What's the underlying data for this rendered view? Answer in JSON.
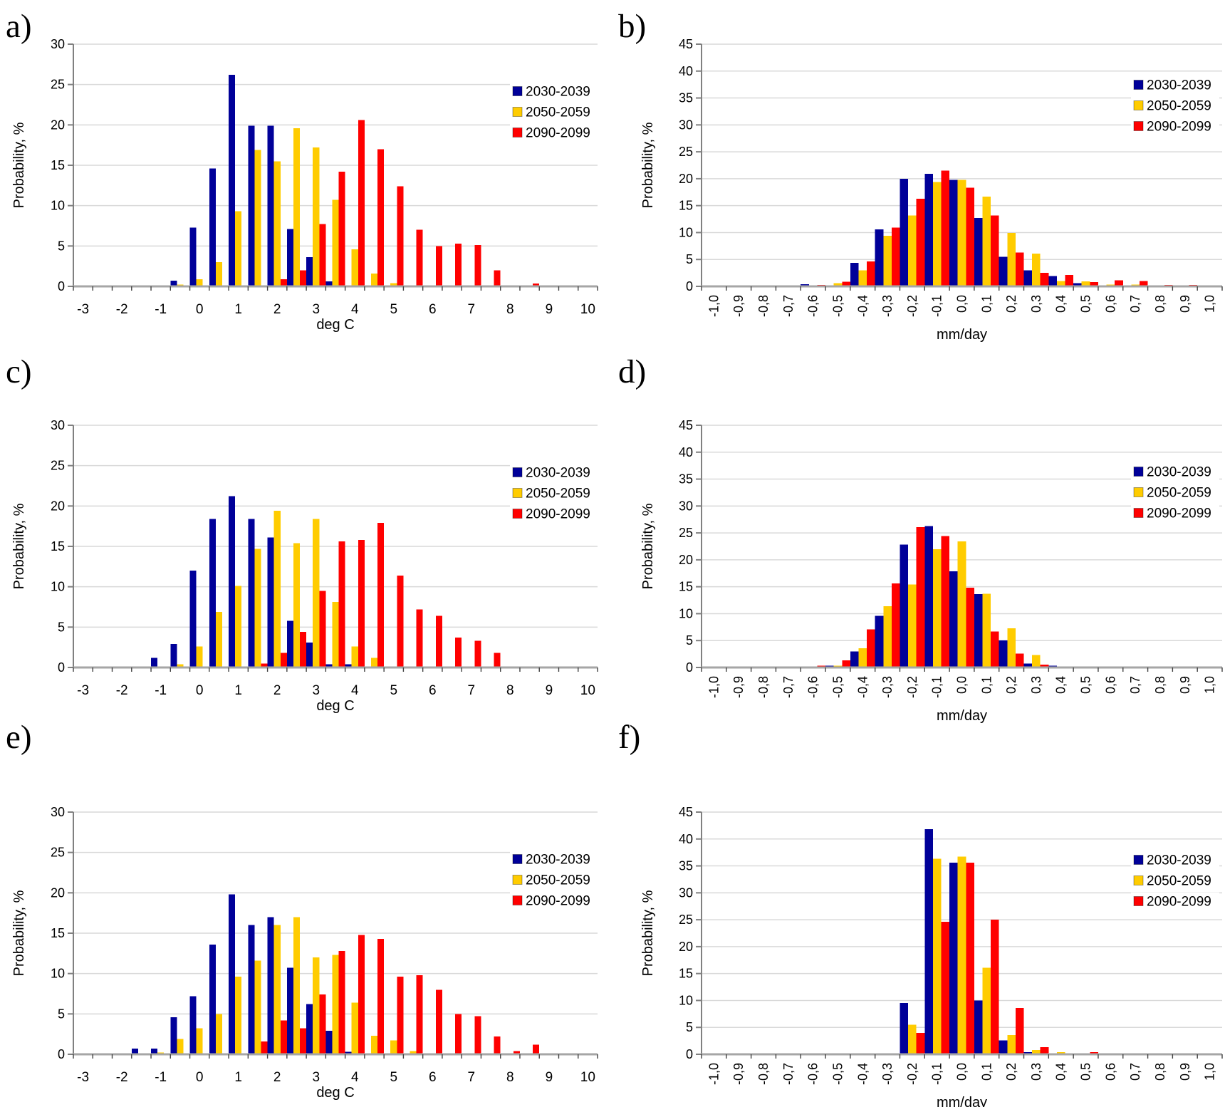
{
  "figure": {
    "background": "#ffffff",
    "legend_labels": [
      "2030-2039",
      "2050-2059",
      "2090-2099"
    ],
    "ylabel": "Probability, %"
  },
  "colors": {
    "navy": "#000099",
    "yellow": "#FFCC00",
    "red": "#FF0000",
    "grid": "#D9D9D9",
    "axis_line": "#808080",
    "baseline": "#A6A6A6",
    "tick": "#404040",
    "text": "#000000"
  },
  "chart_data": [
    {
      "id": "a",
      "letter": "a)",
      "type": "bar",
      "ylabel": "Probability, %",
      "xlabel": "deg C",
      "ylim": [
        0,
        30
      ],
      "ytick_labels": [
        "0",
        "5",
        "10",
        "15",
        "20",
        "25",
        "30"
      ],
      "ytick_values": [
        0,
        5,
        10,
        15,
        20,
        25,
        30
      ],
      "axis_range": [
        -3.25,
        10.25
      ],
      "bin_step": 0.5,
      "bins": {
        "min": -0.5,
        "max": 8.5
      },
      "xtick_values": [
        -3,
        -2,
        -1,
        0,
        1,
        2,
        3,
        4,
        5,
        6,
        7,
        8,
        9,
        10
      ],
      "xtick_labels": [
        "-3",
        "-2",
        "-1",
        "0",
        "1",
        "2",
        "3",
        "4",
        "5",
        "6",
        "7",
        "8",
        "9",
        "10"
      ],
      "series": [
        {
          "name": "2030-2039",
          "color": "navy",
          "values": {
            "-0.5": 0.7,
            "0": 7.3,
            "0.5": 14.6,
            "1": 26.2,
            "1.5": 19.9,
            "2": 19.9,
            "2.5": 7.1,
            "3": 3.6,
            "3.5": 0.6
          }
        },
        {
          "name": "2050-2059",
          "color": "yellow",
          "values": {
            "-0.5": 0.2,
            "0": 0.9,
            "0.5": 3.0,
            "1": 9.3,
            "1.5": 16.9,
            "2": 15.5,
            "2.5": 19.6,
            "3": 17.2,
            "3.5": 10.7,
            "4": 4.6,
            "4.5": 1.6,
            "5": 0.4
          }
        },
        {
          "name": "2090-2099",
          "color": "red",
          "values": {
            "2": 0.9,
            "2.5": 2.0,
            "3": 7.7,
            "3.5": 14.2,
            "4": 20.6,
            "4.5": 17.0,
            "5": 12.4,
            "5.5": 7.0,
            "6": 5.0,
            "6.5": 5.3,
            "7": 5.1,
            "7.5": 2.0,
            "8.5": 0.35
          }
        }
      ]
    },
    {
      "id": "b",
      "letter": "b)",
      "type": "bar",
      "ylabel": "Probability, %",
      "xlabel": "mm/day",
      "ylim": [
        0,
        45
      ],
      "ytick_labels": [
        "0",
        "5",
        "10",
        "15",
        "20",
        "25",
        "30",
        "35",
        "40",
        "45"
      ],
      "ytick_values": [
        0,
        5,
        10,
        15,
        20,
        25,
        30,
        35,
        40,
        45
      ],
      "axis_range": [
        -1.05,
        1.05
      ],
      "bin_step": 0.1,
      "bins": {
        "min": -0.6,
        "max": 0.9
      },
      "xtick_values": [
        -1,
        -0.9,
        -0.8,
        -0.7,
        -0.6,
        -0.5,
        -0.4,
        -0.3,
        -0.2,
        -0.1,
        0,
        0.1,
        0.2,
        0.3,
        0.4,
        0.5,
        0.6,
        0.7,
        0.8,
        0.9,
        1
      ],
      "xtick_labels": [
        "-1,0",
        "-0,9",
        "-0,8",
        "-0,7",
        "-0,6",
        "-0,5",
        "-0,4",
        "-0,3",
        "-0,2",
        "-0,1",
        "0,0",
        "0,1",
        "0,2",
        "0,3",
        "0,4",
        "0,5",
        "0,6",
        "0,7",
        "0,8",
        "0,9",
        "1,0"
      ],
      "series": [
        {
          "name": "2030-2039",
          "color": "navy",
          "values": {
            "-0.6": 0.4,
            "-0.5": 0.2,
            "-0.4": 4.4,
            "-0.3": 10.6,
            "-0.2": 20.0,
            "-0.1": 20.9,
            "0": 19.8,
            "0.1": 12.7,
            "0.2": 5.5,
            "0.3": 3.0,
            "0.4": 1.9,
            "0.5": 0.6,
            "0.7": 0.2
          }
        },
        {
          "name": "2050-2059",
          "color": "yellow",
          "values": {
            "-0.5": 0.6,
            "-0.4": 3.0,
            "-0.3": 9.4,
            "-0.2": 13.2,
            "-0.1": 19.4,
            "0": 19.8,
            "0.1": 16.7,
            "0.2": 9.9,
            "0.3": 6.1,
            "0.4": 1.0,
            "0.5": 0.9,
            "0.6": 0.3,
            "0.7": 0.3
          }
        },
        {
          "name": "2090-2099",
          "color": "red",
          "values": {
            "-0.6": 0.25,
            "-0.5": 0.85,
            "-0.4": 4.6,
            "-0.3": 10.9,
            "-0.2": 16.3,
            "-0.1": 21.5,
            "0": 18.3,
            "0.1": 13.2,
            "0.2": 6.3,
            "0.3": 2.5,
            "0.4": 2.1,
            "0.5": 0.8,
            "0.6": 1.1,
            "0.7": 1.0,
            "0.8": 0.25,
            "0.9": 0.25
          }
        }
      ]
    },
    {
      "id": "c",
      "letter": "c)",
      "type": "bar",
      "ylabel": "Probability, %",
      "xlabel": "deg C",
      "ylim": [
        0,
        30
      ],
      "ytick_labels": [
        "0",
        "5",
        "10",
        "15",
        "20",
        "25",
        "30"
      ],
      "ytick_values": [
        0,
        5,
        10,
        15,
        20,
        25,
        30
      ],
      "axis_range": [
        -3.25,
        10.25
      ],
      "bin_step": 0.5,
      "bins": {
        "min": -1,
        "max": 8.5
      },
      "xtick_values": [
        -3,
        -2,
        -1,
        0,
        1,
        2,
        3,
        4,
        5,
        6,
        7,
        8,
        9,
        10
      ],
      "xtick_labels": [
        "-3",
        "-2",
        "-1",
        "0",
        "1",
        "2",
        "3",
        "4",
        "5",
        "6",
        "7",
        "8",
        "9",
        "10"
      ],
      "series": [
        {
          "name": "2030-2039",
          "color": "navy",
          "values": {
            "-1": 1.2,
            "-0.5": 2.9,
            "0": 12.0,
            "0.5": 18.4,
            "1": 21.2,
            "1.5": 18.4,
            "2": 16.1,
            "2.5": 5.8,
            "3": 3.1,
            "3.5": 0.4,
            "4": 0.4
          }
        },
        {
          "name": "2050-2059",
          "color": "yellow",
          "values": {
            "-0.5": 0.4,
            "0": 2.6,
            "0.5": 6.9,
            "1": 10.1,
            "1.5": 14.7,
            "2": 19.4,
            "2.5": 15.4,
            "3": 18.4,
            "3.5": 8.1,
            "4": 2.6,
            "4.5": 1.2
          }
        },
        {
          "name": "2090-2099",
          "color": "red",
          "values": {
            "1.5": 0.5,
            "2": 1.8,
            "2.5": 4.4,
            "3": 9.5,
            "3.5": 15.6,
            "4": 15.8,
            "4.5": 17.9,
            "5": 11.4,
            "5.5": 7.2,
            "6": 6.4,
            "6.5": 3.7,
            "7": 3.3,
            "7.5": 1.8,
            "8": 0.15,
            "8.5": 0.15
          }
        }
      ]
    },
    {
      "id": "d",
      "letter": "d)",
      "type": "bar",
      "ylabel": "Probability, %",
      "xlabel": "mm/day",
      "ylim": [
        0,
        45
      ],
      "ytick_labels": [
        "0",
        "5",
        "10",
        "15",
        "20",
        "25",
        "30",
        "35",
        "40",
        "45"
      ],
      "ytick_values": [
        0,
        5,
        10,
        15,
        20,
        25,
        30,
        35,
        40,
        45
      ],
      "axis_range": [
        -1.05,
        1.05
      ],
      "bin_step": 0.1,
      "bins": {
        "min": -0.6,
        "max": 0.6
      },
      "xtick_values": [
        -1,
        -0.9,
        -0.8,
        -0.7,
        -0.6,
        -0.5,
        -0.4,
        -0.3,
        -0.2,
        -0.1,
        0,
        0.1,
        0.2,
        0.3,
        0.4,
        0.5,
        0.6,
        0.7,
        0.8,
        0.9,
        1
      ],
      "xtick_labels": [
        "-1,0",
        "-0,9",
        "-0,8",
        "-0,7",
        "-0,6",
        "-0,5",
        "-0,4",
        "-0,3",
        "-0,2",
        "-0,1",
        "0,0",
        "0,1",
        "0,2",
        "0,3",
        "0,4",
        "0,5",
        "0,6",
        "0,7",
        "0,8",
        "0,9",
        "1,0"
      ],
      "series": [
        {
          "name": "2030-2039",
          "color": "navy",
          "values": {
            "-0.5": 0.3,
            "-0.4": 3.0,
            "-0.3": 9.6,
            "-0.2": 22.8,
            "-0.1": 26.3,
            "0": 17.9,
            "0.1": 13.6,
            "0.2": 5.0,
            "0.3": 0.7,
            "0.4": 0.3
          }
        },
        {
          "name": "2050-2059",
          "color": "yellow",
          "values": {
            "-0.5": 0.3,
            "-0.4": 3.6,
            "-0.3": 11.4,
            "-0.2": 15.4,
            "-0.1": 22.0,
            "0": 23.4,
            "0.1": 13.7,
            "0.2": 7.3,
            "0.3": 2.3,
            "0.6": 0.2
          }
        },
        {
          "name": "2090-2099",
          "color": "red",
          "values": {
            "-0.6": 0.3,
            "-0.5": 1.3,
            "-0.4": 7.1,
            "-0.3": 15.6,
            "-0.2": 26.1,
            "-0.1": 24.4,
            "0": 14.8,
            "0.1": 6.7,
            "0.2": 2.6,
            "0.3": 0.5
          }
        }
      ]
    },
    {
      "id": "e",
      "letter": "e)",
      "type": "bar",
      "ylabel": "Probability, %",
      "xlabel": "deg C",
      "ylim": [
        0,
        30
      ],
      "ytick_labels": [
        "0",
        "5",
        "10",
        "15",
        "20",
        "25",
        "30"
      ],
      "ytick_values": [
        0,
        5,
        10,
        15,
        20,
        25,
        30
      ],
      "axis_range": [
        -3.25,
        10.25
      ],
      "bin_step": 0.5,
      "bins": {
        "min": -1.5,
        "max": 8.5
      },
      "xtick_values": [
        -3,
        -2,
        -1,
        0,
        1,
        2,
        3,
        4,
        5,
        6,
        7,
        8,
        9,
        10
      ],
      "xtick_labels": [
        "-3",
        "-2",
        "-1",
        "0",
        "1",
        "2",
        "3",
        "4",
        "5",
        "6",
        "7",
        "8",
        "9",
        "10"
      ],
      "series": [
        {
          "name": "2030-2039",
          "color": "navy",
          "values": {
            "-1.5": 0.7,
            "-1": 0.7,
            "-0.5": 4.6,
            "0": 7.2,
            "0.5": 13.6,
            "1": 19.8,
            "1.5": 16.0,
            "2": 17.0,
            "2.5": 10.7,
            "3": 6.2,
            "3.5": 2.9,
            "4": 0.3
          }
        },
        {
          "name": "2050-2059",
          "color": "yellow",
          "values": {
            "-1": 0.2,
            "-0.5": 1.9,
            "0": 3.2,
            "0.5": 5.0,
            "1": 9.6,
            "1.5": 11.6,
            "2": 16.0,
            "2.5": 17.0,
            "3": 12.0,
            "3.5": 12.3,
            "4": 6.4,
            "4.5": 2.3,
            "5": 1.7,
            "5.5": 0.4
          }
        },
        {
          "name": "2090-2099",
          "color": "red",
          "values": {
            "1.5": 1.6,
            "2": 4.2,
            "2.5": 3.2,
            "3": 7.4,
            "3.5": 12.8,
            "4": 14.8,
            "4.5": 14.3,
            "5": 9.6,
            "5.5": 9.8,
            "6": 8.0,
            "6.5": 5.0,
            "7": 4.7,
            "7.5": 2.2,
            "8": 0.4,
            "8.5": 1.2
          }
        }
      ]
    },
    {
      "id": "f",
      "letter": "f)",
      "type": "bar",
      "ylabel": "Probability, %",
      "xlabel": "mm/day",
      "ylim": [
        0,
        45
      ],
      "ytick_labels": [
        "0",
        "5",
        "10",
        "15",
        "20",
        "25",
        "30",
        "35",
        "40",
        "45"
      ],
      "ytick_values": [
        0,
        5,
        10,
        15,
        20,
        25,
        30,
        35,
        40,
        45
      ],
      "axis_range": [
        -1.05,
        1.05
      ],
      "bin_step": 0.1,
      "bins": {
        "min": -0.3,
        "max": 0.5
      },
      "xtick_values": [
        -1,
        -0.9,
        -0.8,
        -0.7,
        -0.6,
        -0.5,
        -0.4,
        -0.3,
        -0.2,
        -0.1,
        0,
        0.1,
        0.2,
        0.3,
        0.4,
        0.5,
        0.6,
        0.7,
        0.8,
        0.9,
        1
      ],
      "xtick_labels": [
        "-1,0",
        "-0,9",
        "-0,8",
        "-0,7",
        "-0,6",
        "-0,5",
        "-0,4",
        "-0,3",
        "-0,2",
        "-0,1",
        "0,0",
        "0,1",
        "0,2",
        "0,3",
        "0,4",
        "0,5",
        "0,6",
        "0,7",
        "0,8",
        "0,9",
        "1,0"
      ],
      "series": [
        {
          "name": "2030-2039",
          "color": "navy",
          "values": {
            "-0.3": 0.2,
            "-0.2": 9.5,
            "-0.1": 41.8,
            "0": 35.6,
            "0.1": 10.0,
            "0.2": 2.6,
            "0.3": 0.4
          }
        },
        {
          "name": "2050-2059",
          "color": "yellow",
          "values": {
            "-0.2": 5.5,
            "-0.1": 36.3,
            "0": 36.7,
            "0.1": 16.1,
            "0.2": 3.6,
            "0.3": 0.8,
            "0.4": 0.4
          }
        },
        {
          "name": "2090-2099",
          "color": "red",
          "values": {
            "-0.2": 4.0,
            "-0.1": 24.6,
            "0": 35.6,
            "0.1": 25.0,
            "0.2": 8.6,
            "0.3": 1.3,
            "0.4": 0.2,
            "0.5": 0.4
          }
        }
      ]
    }
  ]
}
